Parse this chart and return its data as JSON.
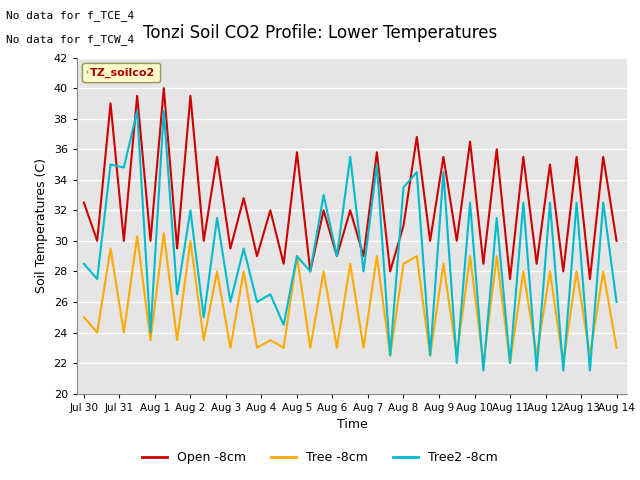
{
  "title": "Tonzi Soil CO2 Profile: Lower Temperatures",
  "xlabel": "Time",
  "ylabel": "Soil Temperatures (C)",
  "ylim": [
    20,
    42
  ],
  "annotations": [
    "No data for f_TCE_4",
    "No data for f_TCW_4"
  ],
  "legend_label": "TZ_soilco2",
  "series_labels": [
    "Open -8cm",
    "Tree -8cm",
    "Tree2 -8cm"
  ],
  "series_colors": [
    "#cc0000",
    "#ffaa00",
    "#00bbcc"
  ],
  "background_color": "#e5e5e5",
  "fig_facecolor": "#ffffff",
  "grid_color": "#ffffff",
  "x_tick_labels": [
    "Jul 30",
    "Jul 31",
    "Aug 1",
    "Aug 2",
    "Aug 3",
    "Aug 4",
    "Aug 5",
    "Aug 6",
    "Aug 7",
    "Aug 8",
    "Aug 9",
    "Aug 10",
    "Aug 11",
    "Aug 12",
    "Aug 13",
    "Aug 14"
  ],
  "open_y": [
    32.5,
    30.0,
    39.0,
    30.0,
    39.5,
    30.0,
    40.0,
    29.5,
    39.5,
    30.0,
    35.5,
    29.5,
    32.8,
    29.0,
    32.0,
    28.5,
    35.8,
    28.0,
    32.0,
    29.0,
    32.0,
    29.0,
    35.8,
    28.0,
    31.0,
    36.8,
    30.0,
    35.5,
    30.0,
    36.5,
    28.5,
    36.0,
    27.5,
    35.5,
    28.5,
    35.0,
    28.0,
    35.5,
    27.5,
    35.5,
    30.0
  ],
  "tree_y": [
    25.0,
    24.0,
    29.5,
    24.0,
    30.3,
    23.5,
    30.5,
    23.5,
    30.0,
    23.5,
    28.0,
    23.0,
    28.0,
    23.0,
    23.5,
    23.0,
    29.0,
    23.0,
    28.0,
    23.0,
    28.5,
    23.0,
    29.0,
    22.5,
    28.5,
    29.0,
    22.5,
    28.5,
    22.5,
    29.0,
    22.0,
    29.0,
    22.0,
    28.0,
    22.5,
    28.0,
    22.0,
    28.0,
    22.5,
    28.0,
    23.0
  ],
  "tree2_y": [
    28.5,
    27.5,
    35.0,
    34.8,
    38.5,
    24.0,
    38.5,
    26.5,
    32.0,
    25.0,
    31.5,
    26.0,
    29.5,
    26.0,
    26.5,
    24.5,
    29.0,
    28.0,
    33.0,
    29.0,
    35.5,
    28.0,
    35.0,
    22.5,
    33.5,
    34.5,
    22.5,
    34.5,
    22.0,
    32.5,
    21.5,
    31.5,
    22.0,
    32.5,
    21.5,
    32.5,
    21.5,
    32.5,
    21.5,
    32.5,
    26.0
  ]
}
